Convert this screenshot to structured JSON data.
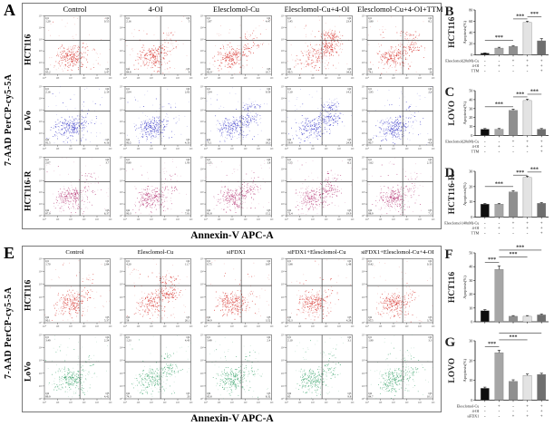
{
  "panelA": {
    "letter": "A",
    "y_axis_label": "7-AAD PerCP-cy5-5A",
    "x_axis_label": "Annexin-V APC-A",
    "columns": [
      "Control",
      "4-OI",
      "Elesclomol-Cu",
      "Elesclomol-Cu+4-OI",
      "Elesclomol-Cu+4-OI+TTM"
    ],
    "axis_ticks": [
      "10⁰",
      "10¹",
      "10²",
      "10³",
      "10⁴",
      "10⁵"
    ],
    "quadrant_names": [
      "Q1",
      "Q2",
      "Q3",
      "Q4"
    ],
    "rows": [
      {
        "cell_line": "HCT116",
        "dot_color": "#d3241f",
        "plots": [
          {
            "q1": 1.2,
            "q2": 0.55,
            "q3": 3.47,
            "q4": 95.2
          },
          {
            "q1": 2.16,
            "q2": 5.0,
            "q3": 8.0,
            "q4": 84.8
          },
          {
            "q1": 1.87,
            "q2": 4.47,
            "q3": 10.7,
            "q4": 82.9
          },
          {
            "q1": 1.45,
            "q2": 23.4,
            "q3": 34.6,
            "q4": 40.5
          },
          {
            "q1": 1.8,
            "q2": 8.2,
            "q3": 16.0,
            "q4": 74.1
          }
        ]
      },
      {
        "cell_line": "LoVo",
        "dot_color": "#2b2bc4",
        "plots": [
          {
            "q1": 2.16,
            "q2": 2.19,
            "q3": 4.16,
            "q4": 91.5
          },
          {
            "q1": 2.04,
            "q2": 2.02,
            "q3": 4.33,
            "q4": 90.5
          },
          {
            "q1": 1.04,
            "q2": 9.59,
            "q3": 18.3,
            "q4": 71.1
          },
          {
            "q1": 1.1,
            "q2": 14.2,
            "q3": 24.8,
            "q4": 59.9
          },
          {
            "q1": 1.95,
            "q2": 2.6,
            "q3": 4.8,
            "q4": 90.7
          }
        ]
      },
      {
        "cell_line": "HCT116-R",
        "dot_color": "#b12e6e",
        "plots": [
          {
            "q1": 2.07,
            "q2": 3.7,
            "q3": 6.37,
            "q4": 87.9
          },
          {
            "q1": 0.8,
            "q2": 1.93,
            "q3": 7.01,
            "q4": 90.3
          },
          {
            "q1": 1.25,
            "q2": 1.8,
            "q3": 15.2,
            "q4": 81.8
          },
          {
            "q1": 1.55,
            "q2": 6.2,
            "q3": 19.9,
            "q4": 72.4
          },
          {
            "q1": 1.62,
            "q2": 2.35,
            "q3": 7.1,
            "q4": 88.9
          }
        ]
      }
    ]
  },
  "panelE": {
    "letter": "E",
    "y_axis_label": "7-AAD PerCP-cy5-5A",
    "x_axis_label": "Annexin-V APC-A",
    "columns": [
      "Control",
      "Elesclomol-Cu",
      "siFDX1",
      "siFDX1+Elesclomol-Cu",
      "siFDX1+Elesclomol-Cu+4-OI"
    ],
    "axis_ticks": [
      "10⁰",
      "10¹",
      "10²",
      "10³",
      "10⁴",
      "10⁵"
    ],
    "quadrant_names": [
      "Q1",
      "Q2",
      "Q3",
      "Q4"
    ],
    "rows": [
      {
        "cell_line": "HCT116",
        "dot_color": "#d3241f",
        "plots": [
          {
            "q1": 1.7,
            "q2": 2.84,
            "q3": 5.37,
            "q4": 90.1
          },
          {
            "q1": 4.2,
            "q2": 11.7,
            "q3": 26.1,
            "q4": 58.0
          },
          {
            "q1": 0.75,
            "q2": 0.87,
            "q3": 3.52,
            "q4": 94.9
          },
          {
            "q1": 1.98,
            "q2": 1.48,
            "q3": 4.28,
            "q4": 92.3
          },
          {
            "q1": 0.42,
            "q2": 0.33,
            "q3": 3.78,
            "q4": 95.5
          }
        ]
      },
      {
        "cell_line": "LoVo",
        "dot_color": "#2f9e63",
        "plots": [
          {
            "q1": 3.49,
            "q2": 2.24,
            "q3": 4.42,
            "q4": 89.9
          },
          {
            "q1": 1.23,
            "q2": 4.43,
            "q3": 20.0,
            "q4": 74.3
          },
          {
            "q1": 3.49,
            "q2": 2.4,
            "q3": 8.32,
            "q4": 85.8
          },
          {
            "q1": 2.1,
            "q2": 3.1,
            "q3": 9.8,
            "q4": 85.0
          },
          {
            "q1": 1.9,
            "q2": 3.3,
            "q3": 10.1,
            "q4": 84.7
          }
        ]
      }
    ]
  },
  "chart_data": [
    {
      "panel": "B",
      "type": "bar",
      "title": "HCT116",
      "ylabel": "Apoptosis(%)",
      "ylim": [
        0,
        80
      ],
      "yticks": [
        0,
        20,
        40,
        60,
        80
      ],
      "values": [
        3,
        12,
        15,
        58,
        25
      ],
      "errors": [
        0.5,
        1.5,
        1.2,
        2,
        4
      ],
      "bar_colors": [
        "#0d0d0d",
        "#a6a6a6",
        "#8f8f8f",
        "#e3e3e3",
        "#6f6f6f"
      ],
      "significance": [
        {
          "from": 0,
          "to": 2,
          "y": 26,
          "label": "***"
        },
        {
          "from": 2,
          "to": 3,
          "y": 64,
          "label": "***"
        },
        {
          "from": 3,
          "to": 4,
          "y": 68,
          "label": "***"
        }
      ],
      "conditions": [
        {
          "label": "Elesclomol(20nM)-Cu",
          "signs": [
            "-",
            "-",
            "+",
            "+",
            "+"
          ]
        },
        {
          "label": "4-OI",
          "signs": [
            "-",
            "+",
            "-",
            "+",
            "+"
          ]
        },
        {
          "label": "TTM",
          "signs": [
            "-",
            "-",
            "-",
            "-",
            "+"
          ]
        }
      ]
    },
    {
      "panel": "C",
      "type": "bar",
      "title": "LOVO",
      "ylabel": "Apoptosis(%)",
      "ylim": [
        0,
        50
      ],
      "yticks": [
        0,
        10,
        20,
        30,
        40,
        50
      ],
      "values": [
        7,
        7,
        28,
        39,
        7
      ],
      "errors": [
        0.8,
        0.8,
        1.5,
        1.5,
        0.8
      ],
      "bar_colors": [
        "#0d0d0d",
        "#a6a6a6",
        "#8f8f8f",
        "#e3e3e3",
        "#6f6f6f"
      ],
      "significance": [
        {
          "from": 0,
          "to": 2,
          "y": 32,
          "label": "***"
        },
        {
          "from": 2,
          "to": 3,
          "y": 43,
          "label": "***"
        },
        {
          "from": 3,
          "to": 4,
          "y": 46,
          "label": "***"
        }
      ],
      "conditions": [
        {
          "label": "Elesclomol(20nM)-Cu",
          "signs": [
            "-",
            "-",
            "+",
            "+",
            "+"
          ]
        },
        {
          "label": "4-OI",
          "signs": [
            "-",
            "+",
            "-",
            "+",
            "+"
          ]
        },
        {
          "label": "TTM",
          "signs": [
            "-",
            "-",
            "-",
            "-",
            "+"
          ]
        }
      ]
    },
    {
      "panel": "D",
      "type": "bar",
      "title": "HCT116-R",
      "ylabel": "Apoptosis(%)",
      "ylim": [
        0,
        30
      ],
      "yticks": [
        0,
        10,
        20,
        30
      ],
      "values": [
        8.5,
        8.5,
        16.5,
        26,
        9
      ],
      "errors": [
        0.4,
        0.4,
        0.8,
        0.8,
        0.5
      ],
      "bar_colors": [
        "#0d0d0d",
        "#a6a6a6",
        "#8f8f8f",
        "#e3e3e3",
        "#6f6f6f"
      ],
      "significance": [
        {
          "from": 0,
          "to": 2,
          "y": 20,
          "label": "***"
        },
        {
          "from": 2,
          "to": 3,
          "y": 27.5,
          "label": "***"
        },
        {
          "from": 3,
          "to": 4,
          "y": 29.5,
          "label": "***"
        }
      ],
      "conditions": [
        {
          "label": "Elesclomol (40nM)-Cu",
          "signs": [
            "-",
            "-",
            "+",
            "+",
            "+"
          ]
        },
        {
          "label": "4-OI",
          "signs": [
            "-",
            "+",
            "-",
            "+",
            "+"
          ]
        },
        {
          "label": "TTM",
          "signs": [
            "-",
            "-",
            "-",
            "-",
            "+"
          ]
        }
      ]
    },
    {
      "panel": "F",
      "type": "bar",
      "title": "HCT116",
      "ylabel": "Apoptosis(%)",
      "ylim": [
        0,
        50
      ],
      "yticks": [
        0,
        10,
        20,
        30,
        40,
        50
      ],
      "values": [
        8,
        38,
        4,
        4,
        5
      ],
      "errors": [
        0.8,
        2.5,
        0.5,
        0.5,
        0.6
      ],
      "bar_colors": [
        "#0d0d0d",
        "#a6a6a6",
        "#8f8f8f",
        "#e3e3e3",
        "#6f6f6f"
      ],
      "significance": [
        {
          "from": 0,
          "to": 1,
          "y": 43,
          "label": "***"
        },
        {
          "from": 1,
          "to": 3,
          "y": 47,
          "label": "***"
        },
        {
          "from": 1,
          "to": 4,
          "y": 52,
          "label": "***"
        }
      ],
      "conditions": []
    },
    {
      "panel": "G",
      "type": "bar",
      "title": "LOVO",
      "ylabel": "Apoptosis(%)",
      "ylim": [
        0,
        30
      ],
      "yticks": [
        0,
        10,
        20,
        30
      ],
      "values": [
        6,
        24,
        9.5,
        12.5,
        13
      ],
      "errors": [
        0.6,
        1.2,
        0.8,
        0.7,
        0.6
      ],
      "bar_colors": [
        "#0d0d0d",
        "#a6a6a6",
        "#8f8f8f",
        "#e3e3e3",
        "#6f6f6f"
      ],
      "significance": [
        {
          "from": 0,
          "to": 1,
          "y": 27,
          "label": "***"
        },
        {
          "from": 1,
          "to": 3,
          "y": 30.5,
          "label": "***"
        },
        {
          "from": 1,
          "to": 4,
          "y": 34,
          "label": "***"
        }
      ],
      "conditions": [
        {
          "label": "Elesclomol-Cu",
          "signs": [
            "-",
            "+",
            "-",
            "+",
            "+"
          ]
        },
        {
          "label": "4-OI",
          "signs": [
            "-",
            "-",
            "-",
            "-",
            "+"
          ]
        },
        {
          "label": "siFDX1",
          "signs": [
            "-",
            "-",
            "+",
            "+",
            "+"
          ]
        }
      ]
    }
  ]
}
